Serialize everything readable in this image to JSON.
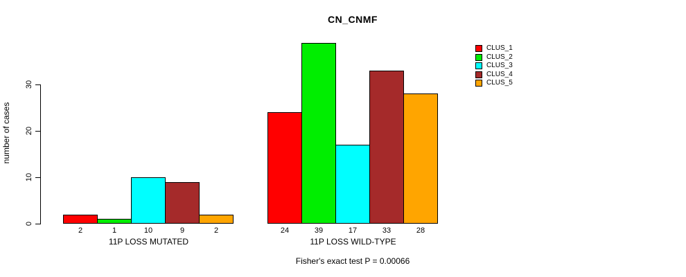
{
  "chart_data": {
    "type": "bar",
    "title": "CN_CNMF",
    "ylabel": "number of cases",
    "yticks": [
      0,
      10,
      20,
      30
    ],
    "ylim": [
      0,
      39
    ],
    "grid": false,
    "legend_position": "right",
    "categories": [
      "11P LOSS MUTATED",
      "11P LOSS WILD-TYPE"
    ],
    "series": [
      {
        "name": "CLUS_1",
        "color": "#ff0000",
        "values": [
          2,
          24
        ]
      },
      {
        "name": "CLUS_2",
        "color": "#00ee00",
        "values": [
          1,
          39
        ]
      },
      {
        "name": "CLUS_3",
        "color": "#00ffff",
        "values": [
          10,
          17
        ]
      },
      {
        "name": "CLUS_4",
        "color": "#a52a2a",
        "values": [
          9,
          33
        ]
      },
      {
        "name": "CLUS_5",
        "color": "#ffa500",
        "values": [
          2,
          28
        ]
      }
    ],
    "bar_value_labels": true,
    "annotation": "Fisher's exact test P = 0.00066"
  }
}
